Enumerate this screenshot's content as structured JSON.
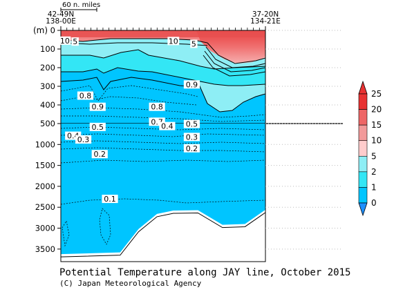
{
  "chart_data": {
    "type": "heatmap",
    "title": "Potential Temperature along JAY line, October 2015",
    "credit": "(C) Japan Meteorological Agency",
    "ylabel": "(m)",
    "left_station": [
      "42-49N",
      "138-00E"
    ],
    "right_station": [
      "37-20N",
      "134-21E"
    ],
    "scale_bar_label": "60 n. miles",
    "yticks_upper": [
      0,
      100,
      200,
      300,
      400,
      500
    ],
    "yticks_lower": [
      1000,
      1500,
      2000,
      2500,
      3000,
      3500
    ],
    "colorbar": {
      "levels": [
        0,
        1,
        2,
        5,
        10,
        15,
        20,
        25
      ],
      "labels": [
        "0",
        "1",
        "2",
        "5",
        "10",
        "15",
        "20",
        "25"
      ],
      "colors": [
        "#1e90ff",
        "#00c5ff",
        "#33e6f5",
        "#8eeef5",
        "#ffcccc",
        "#f29a9a",
        "#ee6666",
        "#e83232"
      ],
      "arrow_bottom": "#1e90ff",
      "arrow_top": "#e83232"
    },
    "contour_labels": [
      {
        "text": "10",
        "x": 0.02,
        "y": 55
      },
      {
        "text": "5",
        "x": 0.07,
        "y": 60
      },
      {
        "text": "10",
        "x": 0.55,
        "y": 57
      },
      {
        "text": "5",
        "x": 0.65,
        "y": 72
      },
      {
        "text": "0.9",
        "x": 0.64,
        "y": 290
      },
      {
        "text": "0.8",
        "x": 0.12,
        "y": 350
      },
      {
        "text": "0.9",
        "x": 0.18,
        "y": 410
      },
      {
        "text": "0.8",
        "x": 0.47,
        "y": 410
      },
      {
        "text": "0.7",
        "x": 0.47,
        "y": 490
      },
      {
        "text": "0.5",
        "x": 0.64,
        "y": 510
      },
      {
        "text": "0.5",
        "x": 0.18,
        "y": 580
      },
      {
        "text": "0.4",
        "x": 0.52,
        "y": 560
      },
      {
        "text": "0.4",
        "x": 0.06,
        "y": 790
      },
      {
        "text": "0.3",
        "x": 0.11,
        "y": 880
      },
      {
        "text": "0.3",
        "x": 0.64,
        "y": 820
      },
      {
        "text": "0.2",
        "x": 0.64,
        "y": 1090
      },
      {
        "text": "0.2",
        "x": 0.19,
        "y": 1230
      },
      {
        "text": "0.1",
        "x": 0.24,
        "y": 2300
      }
    ],
    "sections": {
      "upper": {
        "depth_range": [
          0,
          500
        ]
      },
      "lower": {
        "depth_range": [
          500,
          3800
        ]
      }
    },
    "bottom_profile": [
      {
        "x": 0.0,
        "depth": 3620
      },
      {
        "x": 0.29,
        "depth": 3580
      },
      {
        "x": 0.38,
        "depth": 3020
      },
      {
        "x": 0.47,
        "depth": 2660
      },
      {
        "x": 0.55,
        "depth": 2580
      },
      {
        "x": 0.67,
        "depth": 2570
      },
      {
        "x": 0.79,
        "depth": 2920
      },
      {
        "x": 0.9,
        "depth": 2900
      },
      {
        "x": 1.0,
        "depth": 2560
      }
    ]
  }
}
